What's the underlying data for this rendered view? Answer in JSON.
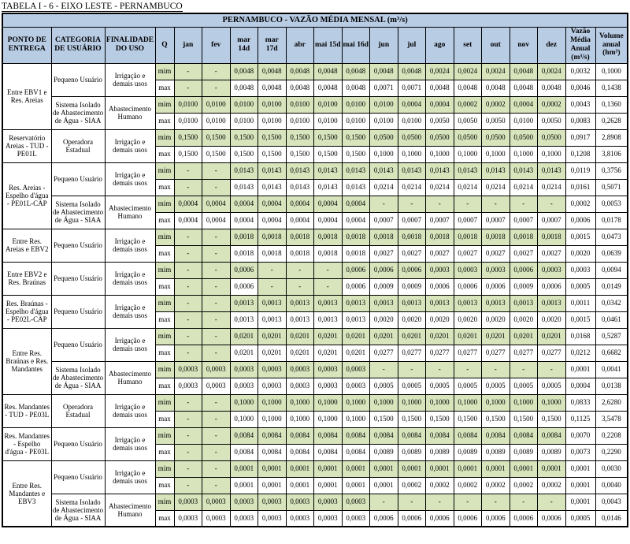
{
  "page_title": "TABELA I - 6 - EIXO LESTE - PERNAMBUCO",
  "colors": {
    "header_bg": "#b8cce4",
    "shade_bg": "#d7e4bc",
    "border": "#000000"
  },
  "table": {
    "banner": "PERNAMBUCO - VAZÃO MÉDIA MENSAL (m³/s)",
    "headers": {
      "ponto": "PONTO DE ENTREGA",
      "categoria": "CATEGORIA DE USUÁRIO",
      "finalidade": "FINALIDADE DO USO",
      "q": "Q",
      "months": [
        "jan",
        "fev",
        "mar 14d",
        "mar 17d",
        "abr",
        "mai 15d",
        "mai 16d",
        "jun",
        "jul",
        "ago",
        "set",
        "out",
        "nov",
        "dez"
      ],
      "vma": "Vazão Média Anual (m³/s)",
      "volume": "Volume anual (hm³)"
    },
    "groups": [
      {
        "ponto": "Entre EBV1 e Res. Areias",
        "users": [
          {
            "categoria": "Pequeno Usuário",
            "finalidade": "Irrigação e demais usos",
            "rows": [
              {
                "q": "mim",
                "values": [
                  "-",
                  "-",
                  "0,0048",
                  "0,0048",
                  "0,0048",
                  "0,0048",
                  "0,0048",
                  "0,0048",
                  "0,0048",
                  "0,0024",
                  "0,0024",
                  "0,0024",
                  "0,0048",
                  "0,0024"
                ],
                "vma": "0,0032",
                "volume": "0,1000"
              },
              {
                "q": "max",
                "values": [
                  "-",
                  "-",
                  "0,0048",
                  "0,0048",
                  "0,0048",
                  "0,0048",
                  "0,0048",
                  "0,0071",
                  "0,0071",
                  "0,0048",
                  "0,0048",
                  "0,0048",
                  "0,0048",
                  "0,0048"
                ],
                "vma": "0,0046",
                "volume": "0,1438"
              }
            ]
          },
          {
            "categoria": "Sistema Isolado de Abastecimento de Água - SIAA",
            "finalidade": "Abastecimento Humano",
            "rows": [
              {
                "q": "mim",
                "values": [
                  "0,0100",
                  "0,0100",
                  "0,0100",
                  "0,0100",
                  "0,0100",
                  "0,0100",
                  "0,0100",
                  "0,0100",
                  "0,0004",
                  "0,0004",
                  "0,0002",
                  "0,0002",
                  "0,0004",
                  "0,0002"
                ],
                "vma": "0,0043",
                "volume": "0,1360"
              },
              {
                "q": "max",
                "values": [
                  "0,0100",
                  "0,0100",
                  "0,0100",
                  "0,0100",
                  "0,0100",
                  "0,0100",
                  "0,0100",
                  "0,0100",
                  "0,0100",
                  "0,0050",
                  "0,0050",
                  "0,0050",
                  "0,0100",
                  "0,0050"
                ],
                "vma": "0,0083",
                "volume": "0,2628"
              }
            ]
          }
        ]
      },
      {
        "ponto": "Reservatório Areias - TUD - PE01L",
        "users": [
          {
            "categoria": "Operadora Estadual",
            "finalidade": "Irrigação e demais usos",
            "rows": [
              {
                "q": "mim",
                "values": [
                  "0,1500",
                  "0,1500",
                  "0,1500",
                  "0,1500",
                  "0,1500",
                  "0,1500",
                  "0,1500",
                  "0,0500",
                  "0,0500",
                  "0,0500",
                  "0,0500",
                  "0,0500",
                  "0,0500",
                  "0,0500"
                ],
                "vma": "0,0917",
                "volume": "2,8908"
              },
              {
                "q": "max",
                "values": [
                  "0,1500",
                  "0,1500",
                  "0,1500",
                  "0,1500",
                  "0,1500",
                  "0,1500",
                  "0,1500",
                  "0,1000",
                  "0,1000",
                  "0,1000",
                  "0,1000",
                  "0,1000",
                  "0,1000",
                  "0,1000"
                ],
                "vma": "0,1208",
                "volume": "3,8106"
              }
            ]
          }
        ]
      },
      {
        "ponto": "Res. Areias - Espelho d'água - PE01L-CAP",
        "users": [
          {
            "categoria": "Pequeno Usuário",
            "finalidade": "Irrigação e demais usos",
            "rows": [
              {
                "q": "mim",
                "values": [
                  "-",
                  "-",
                  "0,0143",
                  "0,0143",
                  "0,0143",
                  "0,0143",
                  "0,0143",
                  "0,0143",
                  "0,0143",
                  "0,0143",
                  "0,0143",
                  "0,0143",
                  "0,0143",
                  "0,0143"
                ],
                "vma": "0,0119",
                "volume": "0,3756"
              },
              {
                "q": "max",
                "values": [
                  "-",
                  "-",
                  "0,0143",
                  "0,0143",
                  "0,0143",
                  "0,0143",
                  "0,0143",
                  "0,0214",
                  "0,0214",
                  "0,0214",
                  "0,0214",
                  "0,0214",
                  "0,0214",
                  "0,0214"
                ],
                "vma": "0,0161",
                "volume": "0,5071"
              }
            ]
          },
          {
            "categoria": "Sistema Isolado de Abastecimento de Água - SIAA",
            "finalidade": "Abastecimento Humano",
            "rows": [
              {
                "q": "mim",
                "values": [
                  "0,0004",
                  "0,0004",
                  "0,0004",
                  "0,0004",
                  "0,0004",
                  "0,0004",
                  "0,0004",
                  "-",
                  "-",
                  "-",
                  "-",
                  "-",
                  "-",
                  "-"
                ],
                "vma": "0,0002",
                "volume": "0,0053"
              },
              {
                "q": "max",
                "values": [
                  "0,0004",
                  "0,0004",
                  "0,0004",
                  "0,0004",
                  "0,0004",
                  "0,0004",
                  "0,0004",
                  "0,0007",
                  "0,0007",
                  "0,0007",
                  "0,0007",
                  "0,0007",
                  "0,0007",
                  "0,0007"
                ],
                "vma": "0,0006",
                "volume": "0,0178"
              }
            ]
          }
        ]
      },
      {
        "ponto": "Entre Res. Areias e EBV2",
        "users": [
          {
            "categoria": "Pequeno Usuário",
            "finalidade": "Irrigação e demais usos",
            "rows": [
              {
                "q": "mim",
                "values": [
                  "-",
                  "-",
                  "0,0018",
                  "0,0018",
                  "0,0018",
                  "0,0018",
                  "0,0018",
                  "0,0018",
                  "0,0018",
                  "0,0018",
                  "0,0018",
                  "0,0018",
                  "0,0018",
                  "0,0018"
                ],
                "vma": "0,0015",
                "volume": "0,0473"
              },
              {
                "q": "max",
                "values": [
                  "-",
                  "-",
                  "0,0018",
                  "0,0018",
                  "0,0018",
                  "0,0018",
                  "0,0018",
                  "0,0027",
                  "0,0027",
                  "0,0027",
                  "0,0027",
                  "0,0027",
                  "0,0027",
                  "0,0027"
                ],
                "vma": "0,0020",
                "volume": "0,0639"
              }
            ]
          }
        ]
      },
      {
        "ponto": "Entre EBV2 e Res. Braúnas",
        "users": [
          {
            "categoria": "Pequeno Usuário",
            "finalidade": "Irrigação e demais usos",
            "rows": [
              {
                "q": "mim",
                "values": [
                  "-",
                  "-",
                  "0,0006",
                  "-",
                  "-",
                  "-",
                  "0,0006",
                  "0,0006",
                  "0,0006",
                  "0,0003",
                  "0,0003",
                  "0,0003",
                  "0,0006",
                  "0,0003"
                ],
                "vma": "0,0003",
                "volume": "0,0094"
              },
              {
                "q": "max",
                "values": [
                  "-",
                  "-",
                  "0,0006",
                  "-",
                  "-",
                  "-",
                  "0,0006",
                  "0,0009",
                  "0,0009",
                  "0,0006",
                  "0,0006",
                  "0,0006",
                  "0,0009",
                  "0,0006"
                ],
                "vma": "0,0005",
                "volume": "0,0149"
              }
            ]
          }
        ]
      },
      {
        "ponto": "Res. Braúnas - Espelho d'água - PE02L-CAP",
        "users": [
          {
            "categoria": "Pequeno Usuário",
            "finalidade": "Irrigação e demais usos",
            "rows": [
              {
                "q": "mim",
                "values": [
                  "-",
                  "-",
                  "0,0013",
                  "0,0013",
                  "0,0013",
                  "0,0013",
                  "0,0013",
                  "0,0013",
                  "0,0013",
                  "0,0013",
                  "0,0013",
                  "0,0013",
                  "0,0013",
                  "0,0013"
                ],
                "vma": "0,0011",
                "volume": "0,0342"
              },
              {
                "q": "max",
                "values": [
                  "-",
                  "-",
                  "0,0013",
                  "0,0013",
                  "0,0013",
                  "0,0013",
                  "0,0013",
                  "0,0020",
                  "0,0020",
                  "0,0020",
                  "0,0020",
                  "0,0020",
                  "0,0020",
                  "0,0020"
                ],
                "vma": "0,0015",
                "volume": "0,0461"
              }
            ]
          }
        ]
      },
      {
        "ponto": "Entre Res. Braúnas e Res. Mandantes",
        "users": [
          {
            "categoria": "Pequeno Usuário",
            "finalidade": "Irrigação e demais usos",
            "rows": [
              {
                "q": "mim",
                "values": [
                  "-",
                  "-",
                  "0,0201",
                  "0,0201",
                  "0,0201",
                  "0,0201",
                  "0,0201",
                  "0,0201",
                  "0,0201",
                  "0,0201",
                  "0,0201",
                  "0,0201",
                  "0,0201",
                  "0,0201"
                ],
                "vma": "0,0168",
                "volume": "0,5287"
              },
              {
                "q": "max",
                "values": [
                  "-",
                  "-",
                  "0,0201",
                  "0,0201",
                  "0,0201",
                  "0,0201",
                  "0,0201",
                  "0,0277",
                  "0,0277",
                  "0,0277",
                  "0,0277",
                  "0,0277",
                  "0,0277",
                  "0,0277"
                ],
                "vma": "0,0212",
                "volume": "0,6682"
              }
            ]
          },
          {
            "categoria": "Sistema Isolado de Abastecimento de Água - SIAA",
            "finalidade": "Abastecimento Humano",
            "rows": [
              {
                "q": "mim",
                "values": [
                  "0,0003",
                  "0,0003",
                  "0,0003",
                  "0,0003",
                  "0,0003",
                  "0,0003",
                  "0,0003",
                  "-",
                  "-",
                  "-",
                  "-",
                  "-",
                  "-",
                  "-"
                ],
                "vma": "0,0001",
                "volume": "0,0041"
              },
              {
                "q": "max",
                "values": [
                  "0,0003",
                  "0,0003",
                  "0,0003",
                  "0,0003",
                  "0,0003",
                  "0,0003",
                  "0,0003",
                  "0,0005",
                  "0,0005",
                  "0,0005",
                  "0,0005",
                  "0,0005",
                  "0,0005",
                  "0,0005"
                ],
                "vma": "0,0004",
                "volume": "0,0138"
              }
            ]
          }
        ]
      },
      {
        "ponto": "Res. Mandantes - TUD - PE03L",
        "users": [
          {
            "categoria": "Operadora Estadual",
            "finalidade": "Irrigação e demais usos",
            "rows": [
              {
                "q": "mim",
                "values": [
                  "-",
                  "-",
                  "0,1000",
                  "0,1000",
                  "0,1000",
                  "0,1000",
                  "0,1000",
                  "0,1000",
                  "0,1000",
                  "0,1000",
                  "0,1000",
                  "0,1000",
                  "0,1000",
                  "0,1000"
                ],
                "vma": "0,0833",
                "volume": "2,6280"
              },
              {
                "q": "max",
                "values": [
                  "-",
                  "-",
                  "0,1000",
                  "0,1000",
                  "0,1000",
                  "0,1000",
                  "0,1000",
                  "0,1500",
                  "0,1500",
                  "0,1500",
                  "0,1500",
                  "0,1500",
                  "0,1500",
                  "0,1500"
                ],
                "vma": "0,1125",
                "volume": "3,5478"
              }
            ]
          }
        ]
      },
      {
        "ponto": "Res. Mandantes - Espelho d'água - PE03L",
        "users": [
          {
            "categoria": "Pequeno Usuário",
            "finalidade": "Irrigação e demais usos",
            "rows": [
              {
                "q": "mim",
                "values": [
                  "-",
                  "-",
                  "0,0084",
                  "0,0084",
                  "0,0084",
                  "0,0084",
                  "0,0084",
                  "0,0084",
                  "0,0084",
                  "0,0084",
                  "0,0084",
                  "0,0084",
                  "0,0084",
                  "0,0084"
                ],
                "vma": "0,0070",
                "volume": "0,2208"
              },
              {
                "q": "max",
                "values": [
                  "-",
                  "-",
                  "0,0084",
                  "0,0084",
                  "0,0084",
                  "0,0084",
                  "0,0084",
                  "0,0089",
                  "0,0089",
                  "0,0089",
                  "0,0089",
                  "0,0089",
                  "0,0089",
                  "0,0089"
                ],
                "vma": "0,0073",
                "volume": "0,2290"
              }
            ]
          }
        ]
      },
      {
        "ponto": "Entre Res. Mandantes e EBV3",
        "users": [
          {
            "categoria": "Pequeno Usuário",
            "finalidade": "Irrigação e demais usos",
            "rows": [
              {
                "q": "mim",
                "values": [
                  "-",
                  "-",
                  "0,0001",
                  "0,0001",
                  "0,0001",
                  "0,0001",
                  "0,0001",
                  "0,0001",
                  "0,0001",
                  "0,0001",
                  "0,0001",
                  "0,0001",
                  "0,0001",
                  "0,0001"
                ],
                "vma": "0,0001",
                "volume": "0,0030"
              },
              {
                "q": "max",
                "values": [
                  "-",
                  "-",
                  "0,0001",
                  "0,0001",
                  "0,0001",
                  "0,0001",
                  "0,0001",
                  "0,0001",
                  "0,0002",
                  "0,0002",
                  "0,0002",
                  "0,0002",
                  "0,0002",
                  "0,0002"
                ],
                "vma": "0,0001",
                "volume": "0,0040"
              }
            ]
          },
          {
            "categoria": "Sistema Isolado de Abastecimento de Água - SIAA",
            "finalidade": "Abastecimento Humano",
            "rows": [
              {
                "q": "mim",
                "values": [
                  "0,0003",
                  "0,0003",
                  "0,0003",
                  "0,0003",
                  "0,0003",
                  "0,0003",
                  "0,0003",
                  "-",
                  "-",
                  "-",
                  "-",
                  "-",
                  "-",
                  "-"
                ],
                "vma": "0,0001",
                "volume": "0,0043"
              },
              {
                "q": "max",
                "values": [
                  "0,0003",
                  "0,0003",
                  "0,0003",
                  "0,0003",
                  "0,0003",
                  "0,0003",
                  "0,0003",
                  "0,0006",
                  "0,0006",
                  "0,0006",
                  "0,0006",
                  "0,0006",
                  "0,0006",
                  "0,0006"
                ],
                "vma": "0,0005",
                "volume": "0,0146"
              }
            ]
          }
        ]
      }
    ]
  }
}
